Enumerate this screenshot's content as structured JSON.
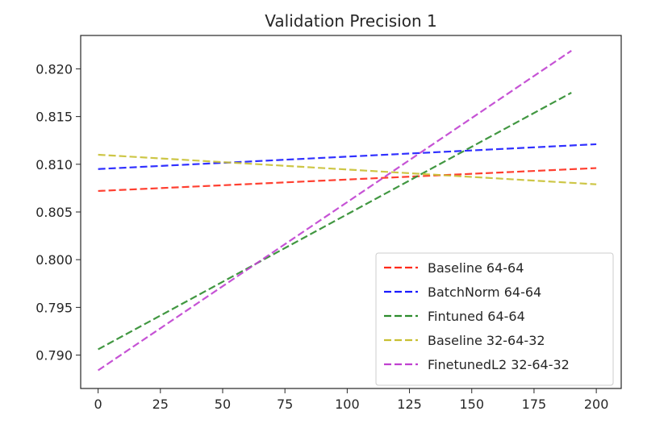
{
  "chart_data": {
    "type": "line",
    "title": "Validation Precision 1",
    "xlabel": "",
    "ylabel": "",
    "xlim": [
      -7,
      210
    ],
    "ylim": [
      0.7865,
      0.8235
    ],
    "xticks": [
      0,
      25,
      50,
      75,
      100,
      125,
      150,
      175,
      200
    ],
    "yticks": [
      0.79,
      0.795,
      0.8,
      0.805,
      0.81,
      0.815,
      0.82
    ],
    "ytick_labels": [
      "0.790",
      "0.795",
      "0.800",
      "0.805",
      "0.810",
      "0.815",
      "0.820"
    ],
    "xtick_labels": [
      "0",
      "25",
      "50",
      "75",
      "100",
      "125",
      "150",
      "175",
      "200"
    ],
    "grid": false,
    "legend_position": "lower-right",
    "line_style": "dashed",
    "series": [
      {
        "name": "Baseline 64-64",
        "color": "#ff2a1a",
        "x": [
          0,
          200
        ],
        "y": [
          0.8072,
          0.8096
        ]
      },
      {
        "name": "BatchNorm 64-64",
        "color": "#1a1aff",
        "x": [
          0,
          200
        ],
        "y": [
          0.8095,
          0.8121
        ]
      },
      {
        "name": "Fintuned 64-64",
        "color": "#2c8c2c",
        "x": [
          0,
          190
        ],
        "y": [
          0.7906,
          0.8175
        ]
      },
      {
        "name": "Baseline 32-64-32",
        "color": "#c8c032",
        "x": [
          0,
          200
        ],
        "y": [
          0.811,
          0.8079
        ]
      },
      {
        "name": "FinetunedL2 32-64-32",
        "color": "#c040d0",
        "x": [
          0,
          190
        ],
        "y": [
          0.7884,
          0.8219
        ]
      }
    ]
  }
}
